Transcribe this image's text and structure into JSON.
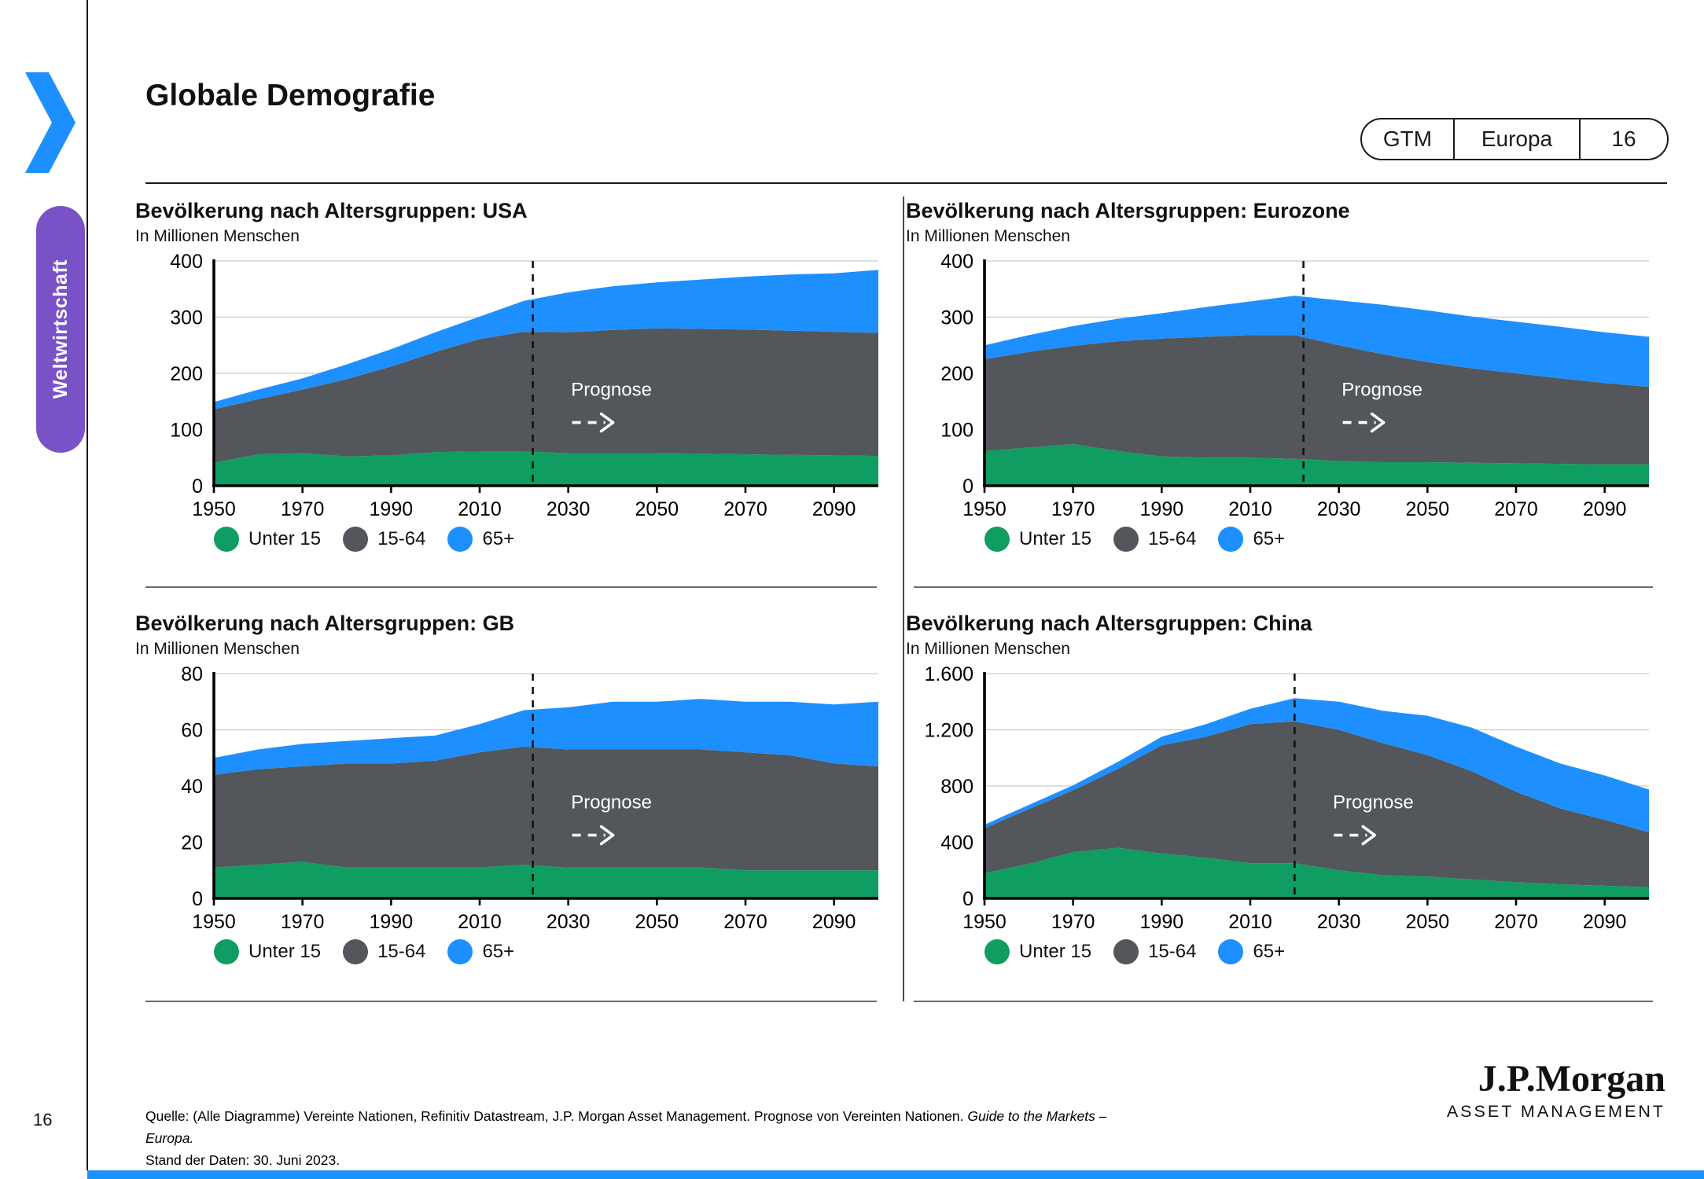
{
  "header": {
    "title": "Globale Demografie",
    "badge": [
      "GTM",
      "Europa",
      "16"
    ]
  },
  "sidebar": {
    "tab_label": "Weltwirtschaft"
  },
  "colors": {
    "green": "#0F9D61",
    "gray": "#53565A",
    "blue": "#1E8FFF",
    "purple": "#7A52C8",
    "accent_bar": "#1E8FFF"
  },
  "footer": {
    "page_number": "16",
    "source_prefix": "Quelle: (Alle Diagramme) Vereinte Nationen, Refinitiv Datastream, J.P. Morgan Asset Management. Prognose von Vereinten Nationen. ",
    "source_italic": "Guide to the Markets – Europa.",
    "source_line2": "Stand der Daten: 30. Juni 2023.",
    "logo_main": "J.P.Morgan",
    "logo_sub": "ASSET MANAGEMENT"
  },
  "chart_data": [
    {
      "type": "area",
      "stacked": true,
      "title": "Bevölkerung nach Altersgruppen: USA",
      "subtitle": "In Millionen Menschen",
      "ylim": [
        0,
        400
      ],
      "ytick_labels": [
        "0",
        "100",
        "200",
        "300",
        "400"
      ],
      "xlim": [
        1950,
        2100
      ],
      "xticks": [
        1950,
        1970,
        1990,
        2010,
        2030,
        2050,
        2070,
        2090
      ],
      "years": [
        1950,
        1960,
        1970,
        1980,
        1990,
        2000,
        2010,
        2020,
        2030,
        2040,
        2050,
        2060,
        2070,
        2080,
        2090,
        2100
      ],
      "prognose": {
        "year": 2022,
        "label": "Prognose"
      },
      "series": [
        {
          "name": "Unter 15",
          "color": "#0F9D61",
          "values": [
            41,
            56,
            58,
            52,
            54,
            60,
            61,
            61,
            58,
            58,
            58,
            57,
            56,
            55,
            54,
            53
          ]
        },
        {
          "name": "15-64",
          "color": "#53565A",
          "values": [
            95,
            98,
            113,
            138,
            158,
            178,
            200,
            213,
            215,
            219,
            222,
            222,
            222,
            221,
            220,
            219
          ]
        },
        {
          "name": "65+",
          "color": "#1E8FFF",
          "values": [
            13,
            17,
            20,
            26,
            31,
            35,
            40,
            55,
            71,
            78,
            82,
            88,
            94,
            100,
            104,
            112
          ]
        }
      ]
    },
    {
      "type": "area",
      "stacked": true,
      "title": "Bevölkerung nach Altersgruppen: Eurozone",
      "subtitle": "In Millionen Menschen",
      "ylim": [
        0,
        400
      ],
      "ytick_labels": [
        "0",
        "100",
        "200",
        "300",
        "400"
      ],
      "xlim": [
        1950,
        2100
      ],
      "xticks": [
        1950,
        1970,
        1990,
        2010,
        2030,
        2050,
        2070,
        2090
      ],
      "years": [
        1950,
        1960,
        1970,
        1980,
        1990,
        2000,
        2010,
        2020,
        2030,
        2040,
        2050,
        2060,
        2070,
        2080,
        2090,
        2100
      ],
      "prognose": {
        "year": 2022,
        "label": "Prognose"
      },
      "series": [
        {
          "name": "Unter 15",
          "color": "#0F9D61",
          "values": [
            62,
            68,
            74,
            62,
            52,
            50,
            50,
            48,
            44,
            42,
            42,
            41,
            40,
            39,
            38,
            38
          ]
        },
        {
          "name": "15-64",
          "color": "#53565A",
          "values": [
            163,
            170,
            175,
            195,
            210,
            215,
            218,
            220,
            206,
            192,
            178,
            168,
            160,
            152,
            145,
            138
          ]
        },
        {
          "name": "65+",
          "color": "#1E8FFF",
          "values": [
            25,
            30,
            35,
            40,
            45,
            53,
            60,
            70,
            80,
            88,
            92,
            92,
            92,
            92,
            90,
            89
          ]
        }
      ]
    },
    {
      "type": "area",
      "stacked": true,
      "title": "Bevölkerung nach Altersgruppen: GB",
      "subtitle": "In Millionen Menschen",
      "ylim": [
        0,
        80
      ],
      "ytick_labels": [
        "0",
        "20",
        "40",
        "60",
        "80"
      ],
      "xlim": [
        1950,
        2100
      ],
      "xticks": [
        1950,
        1970,
        1990,
        2010,
        2030,
        2050,
        2070,
        2090
      ],
      "years": [
        1950,
        1960,
        1970,
        1980,
        1990,
        2000,
        2010,
        2020,
        2030,
        2040,
        2050,
        2060,
        2070,
        2080,
        2090,
        2100
      ],
      "prognose": {
        "year": 2022,
        "label": "Prognose"
      },
      "series": [
        {
          "name": "Unter 15",
          "color": "#0F9D61",
          "values": [
            11,
            12,
            13,
            11,
            11,
            11,
            11,
            12,
            11,
            11,
            11,
            11,
            10,
            10,
            10,
            10
          ]
        },
        {
          "name": "15-64",
          "color": "#53565A",
          "values": [
            33,
            34,
            34,
            37,
            37,
            38,
            41,
            42,
            42,
            42,
            42,
            42,
            42,
            41,
            38,
            37
          ]
        },
        {
          "name": "65+",
          "color": "#1E8FFF",
          "values": [
            6,
            7,
            8,
            8,
            9,
            9,
            10,
            13,
            15,
            17,
            17,
            18,
            18,
            19,
            21,
            23
          ]
        }
      ]
    },
    {
      "type": "area",
      "stacked": true,
      "title": "Bevölkerung nach Altersgruppen: China",
      "subtitle": "In Millionen Menschen",
      "ylim": [
        0,
        1600
      ],
      "ytick_labels": [
        "0",
        "400",
        "800",
        "1.200",
        "1.600"
      ],
      "xlim": [
        1950,
        2100
      ],
      "xticks": [
        1950,
        1970,
        1990,
        2010,
        2030,
        2050,
        2070,
        2090
      ],
      "years": [
        1950,
        1960,
        1970,
        1980,
        1990,
        2000,
        2010,
        2020,
        2030,
        2040,
        2050,
        2060,
        2070,
        2080,
        2090,
        2100
      ],
      "prognose": {
        "year": 2020,
        "label": "Prognose"
      },
      "series": [
        {
          "name": "Unter 15",
          "color": "#0F9D61",
          "values": [
            180,
            245,
            330,
            360,
            320,
            290,
            250,
            250,
            200,
            165,
            155,
            135,
            115,
            100,
            90,
            80
          ]
        },
        {
          "name": "15-64",
          "color": "#53565A",
          "values": [
            320,
            390,
            440,
            560,
            770,
            860,
            990,
            1010,
            1000,
            940,
            865,
            770,
            645,
            540,
            470,
            390
          ]
        },
        {
          "name": "65+",
          "color": "#1E8FFF",
          "values": [
            25,
            30,
            35,
            50,
            60,
            90,
            110,
            165,
            200,
            230,
            280,
            310,
            320,
            320,
            315,
            305
          ]
        }
      ]
    }
  ]
}
